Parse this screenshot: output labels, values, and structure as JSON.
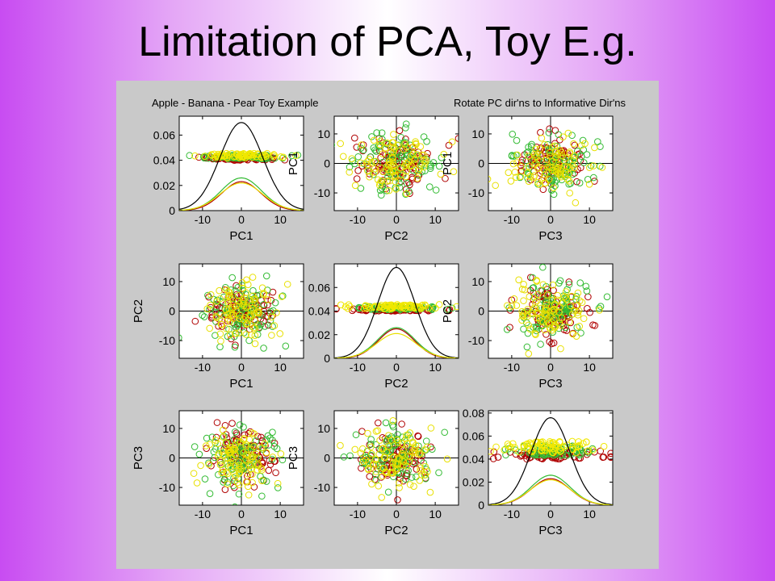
{
  "slide": {
    "title": "Limitation of PCA, Toy E.g."
  },
  "figure": {
    "title_left": "Apple - Banana - Pear Toy Example",
    "title_right": "Rotate PC dir'ns to Informative Dir'ns"
  },
  "colors": {
    "apple": "#b00000",
    "banana": "#f0e800",
    "pear": "#33bb33",
    "background": "#c9c9c9"
  },
  "chart_data": [
    {
      "type": "line",
      "panel": "1,1",
      "xlabel": "PC1",
      "ylabel": "",
      "xticks": [
        -10,
        0,
        10
      ],
      "yticks": [
        0,
        0.02,
        0.04,
        0.06
      ],
      "ytick_labels": [
        "0",
        "0.02",
        "0.04",
        "0.06"
      ],
      "xlim": [
        -16,
        16
      ],
      "ylim": [
        0,
        0.075
      ],
      "series": [
        {
          "color": "black",
          "peak": 0.07,
          "sd": 5.5
        },
        {
          "color": "red",
          "peak": 0.023,
          "sd": 5.0
        },
        {
          "color": "green",
          "peak": 0.026,
          "sd": 5.2
        },
        {
          "color": "yellow",
          "peak": 0.022,
          "sd": 5.4
        }
      ],
      "jitter_y": [
        0.04,
        0.0455
      ]
    },
    {
      "type": "scatter",
      "panel": "1,2",
      "xlabel": "PC2",
      "ylabel": "PC1",
      "xticks": [
        -10,
        0,
        10
      ],
      "yticks": [
        -10,
        0,
        10
      ],
      "xlim": [
        -16,
        16
      ],
      "ylim": [
        -16,
        16
      ]
    },
    {
      "type": "scatter",
      "panel": "1,3",
      "xlabel": "PC3",
      "ylabel": "PC1",
      "xticks": [
        -10,
        0,
        10
      ],
      "yticks": [
        -10,
        0,
        10
      ],
      "xlim": [
        -16,
        16
      ],
      "ylim": [
        -16,
        16
      ]
    },
    {
      "type": "scatter",
      "panel": "2,1",
      "xlabel": "PC1",
      "ylabel": "PC2",
      "xticks": [
        -10,
        0,
        10
      ],
      "yticks": [
        -10,
        0,
        10
      ],
      "xlim": [
        -16,
        16
      ],
      "ylim": [
        -16,
        16
      ]
    },
    {
      "type": "line",
      "panel": "2,2",
      "xlabel": "PC2",
      "ylabel": "",
      "xticks": [
        -10,
        0,
        10
      ],
      "yticks": [
        0,
        0.02,
        0.04,
        0.06
      ],
      "ytick_labels": [
        "0",
        "0.02",
        "0.04",
        "0.06"
      ],
      "xlim": [
        -16,
        16
      ],
      "ylim": [
        0,
        0.08
      ],
      "series": [
        {
          "color": "black",
          "peak": 0.077,
          "sd": 4.8
        },
        {
          "color": "red",
          "peak": 0.025,
          "sd": 4.6
        },
        {
          "color": "green",
          "peak": 0.026,
          "sd": 4.8
        },
        {
          "color": "yellow",
          "peak": 0.021,
          "sd": 5.0
        }
      ],
      "jitter_y": [
        0.04,
        0.0455
      ]
    },
    {
      "type": "scatter",
      "panel": "2,3",
      "xlabel": "PC3",
      "ylabel": "PC2",
      "xticks": [
        -10,
        0,
        10
      ],
      "yticks": [
        -10,
        0,
        10
      ],
      "xlim": [
        -16,
        16
      ],
      "ylim": [
        -16,
        16
      ]
    },
    {
      "type": "scatter",
      "panel": "3,1",
      "xlabel": "PC1",
      "ylabel": "PC3",
      "xticks": [
        -10,
        0,
        10
      ],
      "yticks": [
        -10,
        0,
        10
      ],
      "xlim": [
        -16,
        16
      ],
      "ylim": [
        -16,
        16
      ]
    },
    {
      "type": "scatter",
      "panel": "3,2",
      "xlabel": "PC2",
      "ylabel": "PC3",
      "xticks": [
        -10,
        0,
        10
      ],
      "yticks": [
        -10,
        0,
        10
      ],
      "xlim": [
        -16,
        16
      ],
      "ylim": [
        -16,
        16
      ]
    },
    {
      "type": "line",
      "panel": "3,3",
      "xlabel": "PC3",
      "ylabel": "",
      "xticks": [
        -10,
        0,
        10
      ],
      "yticks": [
        0,
        0.02,
        0.04,
        0.06,
        0.08
      ],
      "ytick_labels": [
        "0",
        "0.02",
        "0.04",
        "0.06",
        "0.08"
      ],
      "xlim": [
        -16,
        16
      ],
      "ylim": [
        0,
        0.082
      ],
      "series": [
        {
          "color": "black",
          "peak": 0.076,
          "sd": 5.0
        },
        {
          "color": "red",
          "peak": 0.023,
          "sd": 5.0
        },
        {
          "color": "green",
          "peak": 0.026,
          "sd": 5.0
        },
        {
          "color": "yellow",
          "peak": 0.022,
          "sd": 5.2
        }
      ],
      "jitter_y": [
        0.04,
        0.0555
      ]
    }
  ]
}
